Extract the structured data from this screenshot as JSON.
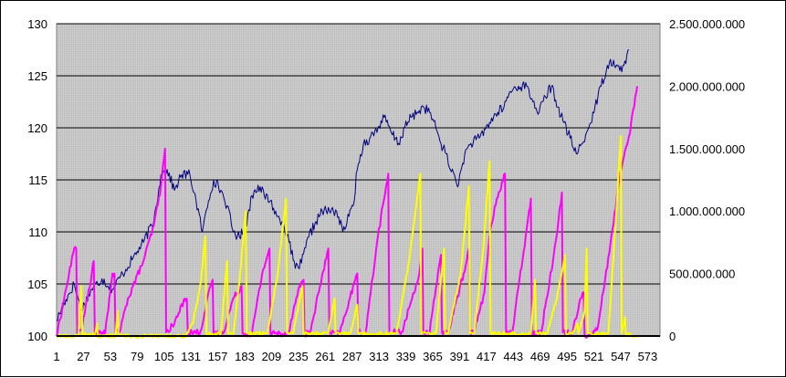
{
  "chart_data": {
    "type": "line",
    "title": "",
    "xlabel": "",
    "ylabel": "",
    "y_left": {
      "min": 100,
      "max": 130,
      "step": 5,
      "ticks": [
        "100",
        "105",
        "110",
        "115",
        "120",
        "125",
        "130"
      ]
    },
    "y_right": {
      "min": 0,
      "max": 2500000000,
      "step": 500000000,
      "ticks": [
        "0",
        "500.000.000",
        "1.000.000.000",
        "1.500.000.000",
        "2.000.000.000",
        "2.500.000.000"
      ]
    },
    "x_ticks": [
      "1",
      "27",
      "53",
      "79",
      "105",
      "131",
      "157",
      "183",
      "209",
      "235",
      "261",
      "287",
      "313",
      "339",
      "365",
      "391",
      "417",
      "443",
      "469",
      "495",
      "521",
      "547",
      "573"
    ],
    "x_range": [
      1,
      585
    ],
    "grid": true,
    "legend": "none",
    "background_color": "#c0c0c0",
    "series": [
      {
        "axis": "left",
        "color": "#000080",
        "knots": [
          [
            1,
            101.5
          ],
          [
            10,
            103.5
          ],
          [
            18,
            105
          ],
          [
            25,
            102.5
          ],
          [
            35,
            104.5
          ],
          [
            45,
            105.5
          ],
          [
            55,
            104.5
          ],
          [
            65,
            106
          ],
          [
            75,
            107.5
          ],
          [
            85,
            109
          ],
          [
            95,
            111
          ],
          [
            102,
            115.5
          ],
          [
            108,
            116
          ],
          [
            115,
            114
          ],
          [
            122,
            115.5
          ],
          [
            130,
            115.5
          ],
          [
            136,
            113
          ],
          [
            142,
            110
          ],
          [
            148,
            113
          ],
          [
            153,
            115
          ],
          [
            160,
            114
          ],
          [
            166,
            112.5
          ],
          [
            172,
            110
          ],
          [
            178,
            109.5
          ],
          [
            184,
            110.5
          ],
          [
            190,
            113.5
          ],
          [
            196,
            114.5
          ],
          [
            202,
            113.5
          ],
          [
            208,
            113
          ],
          [
            214,
            111.5
          ],
          [
            220,
            111
          ],
          [
            226,
            109
          ],
          [
            232,
            106.5
          ],
          [
            238,
            107
          ],
          [
            245,
            109.5
          ],
          [
            252,
            111
          ],
          [
            258,
            112
          ],
          [
            265,
            112
          ],
          [
            272,
            112
          ],
          [
            278,
            110
          ],
          [
            284,
            111.5
          ],
          [
            288,
            112.5
          ],
          [
            292,
            116
          ],
          [
            298,
            118.5
          ],
          [
            304,
            119
          ],
          [
            312,
            120
          ],
          [
            318,
            121
          ],
          [
            325,
            119.5
          ],
          [
            332,
            118.5
          ],
          [
            338,
            120
          ],
          [
            344,
            121
          ],
          [
            350,
            121.5
          ],
          [
            356,
            122
          ],
          [
            362,
            121.5
          ],
          [
            368,
            120
          ],
          [
            373,
            118.5
          ],
          [
            378,
            117.5
          ],
          [
            382,
            116
          ],
          [
            386,
            115.5
          ],
          [
            390,
            114.5
          ],
          [
            396,
            117.5
          ],
          [
            402,
            118.5
          ],
          [
            410,
            119
          ],
          [
            420,
            120.5
          ],
          [
            428,
            121.5
          ],
          [
            434,
            122
          ],
          [
            440,
            123.5
          ],
          [
            448,
            124
          ],
          [
            456,
            124
          ],
          [
            462,
            122.5
          ],
          [
            468,
            121.5
          ],
          [
            474,
            123
          ],
          [
            480,
            124
          ],
          [
            486,
            122
          ],
          [
            492,
            120.5
          ],
          [
            498,
            119
          ],
          [
            504,
            117.5
          ],
          [
            510,
            118.5
          ],
          [
            516,
            120
          ],
          [
            522,
            122
          ],
          [
            528,
            124
          ],
          [
            534,
            126
          ],
          [
            540,
            126.5
          ],
          [
            546,
            125.5
          ],
          [
            550,
            126
          ],
          [
            555,
            127.5
          ]
        ],
        "wobble": 0.5
      },
      {
        "axis": "right",
        "color": "#ff00ff",
        "knots": [
          [
            1,
            0
          ],
          [
            18,
            700000000
          ],
          [
            20,
            700000000
          ],
          [
            21,
            20000000
          ],
          [
            26,
            80000000
          ],
          [
            35,
            500000000
          ],
          [
            37,
            600000000
          ],
          [
            38,
            20000000
          ],
          [
            48,
            20000000
          ],
          [
            55,
            500000000
          ],
          [
            57,
            500000000
          ],
          [
            58,
            30000000
          ],
          [
            62,
            30000000
          ],
          [
            70,
            300000000
          ],
          [
            85,
            600000000
          ],
          [
            95,
            880000000
          ],
          [
            102,
            1200000000
          ],
          [
            106,
            1500000000
          ],
          [
            107,
            30000000
          ],
          [
            115,
            100000000
          ],
          [
            125,
            300000000
          ],
          [
            127,
            300000000
          ],
          [
            128,
            30000000
          ],
          [
            140,
            30000000
          ],
          [
            150,
            400000000
          ],
          [
            152,
            450000000
          ],
          [
            153,
            20000000
          ],
          [
            162,
            20000000
          ],
          [
            172,
            300000000
          ],
          [
            180,
            400000000
          ],
          [
            181,
            20000000
          ],
          [
            190,
            20000000
          ],
          [
            200,
            500000000
          ],
          [
            207,
            700000000
          ],
          [
            208,
            20000000
          ],
          [
            225,
            20000000
          ],
          [
            236,
            400000000
          ],
          [
            240,
            450000000
          ],
          [
            241,
            20000000
          ],
          [
            246,
            20000000
          ],
          [
            256,
            400000000
          ],
          [
            264,
            700000000
          ],
          [
            265,
            20000000
          ],
          [
            275,
            20000000
          ],
          [
            290,
            450000000
          ],
          [
            292,
            500000000
          ],
          [
            293,
            30000000
          ],
          [
            300,
            30000000
          ],
          [
            312,
            800000000
          ],
          [
            322,
            1300000000
          ],
          [
            323,
            30000000
          ],
          [
            335,
            30000000
          ],
          [
            345,
            300000000
          ],
          [
            352,
            500000000
          ],
          [
            355,
            700000000
          ],
          [
            356,
            20000000
          ],
          [
            362,
            20000000
          ],
          [
            370,
            500000000
          ],
          [
            373,
            650000000
          ],
          [
            374,
            30000000
          ],
          [
            380,
            30000000
          ],
          [
            395,
            500000000
          ],
          [
            400,
            700000000
          ],
          [
            401,
            30000000
          ],
          [
            405,
            30000000
          ],
          [
            415,
            350000000
          ],
          [
            420,
            800000000
          ],
          [
            427,
            1100000000
          ],
          [
            435,
            1300000000
          ],
          [
            436,
            30000000
          ],
          [
            442,
            30000000
          ],
          [
            455,
            800000000
          ],
          [
            460,
            1100000000
          ],
          [
            461,
            30000000
          ],
          [
            470,
            30000000
          ],
          [
            485,
            800000000
          ],
          [
            490,
            1150000000
          ],
          [
            491,
            30000000
          ],
          [
            500,
            30000000
          ],
          [
            508,
            300000000
          ],
          [
            511,
            350000000
          ],
          [
            512,
            10000000
          ],
          [
            520,
            10000000
          ],
          [
            525,
            80000000
          ],
          [
            530,
            350000000
          ],
          [
            540,
            900000000
          ],
          [
            546,
            1300000000
          ],
          [
            555,
            1600000000
          ],
          [
            563,
            2000000000
          ]
        ],
        "wobble": 25000000
      },
      {
        "axis": "right",
        "color": "#ffff00",
        "knots": [
          [
            1,
            0
          ],
          [
            22,
            0
          ],
          [
            25,
            400000000
          ],
          [
            26,
            10000000
          ],
          [
            38,
            10000000
          ],
          [
            40,
            100000000
          ],
          [
            41,
            0
          ],
          [
            58,
            0
          ],
          [
            60,
            200000000
          ],
          [
            61,
            0
          ],
          [
            126,
            0
          ],
          [
            133,
            100000000
          ],
          [
            140,
            400000000
          ],
          [
            145,
            800000000
          ],
          [
            146,
            20000000
          ],
          [
            160,
            20000000
          ],
          [
            166,
            600000000
          ],
          [
            167,
            20000000
          ],
          [
            172,
            20000000
          ],
          [
            178,
            450000000
          ],
          [
            184,
            1000000000
          ],
          [
            185,
            20000000
          ],
          [
            205,
            20000000
          ],
          [
            215,
            500000000
          ],
          [
            223,
            1100000000
          ],
          [
            224,
            20000000
          ],
          [
            230,
            20000000
          ],
          [
            239,
            400000000
          ],
          [
            240,
            20000000
          ],
          [
            264,
            20000000
          ],
          [
            270,
            300000000
          ],
          [
            271,
            20000000
          ],
          [
            285,
            20000000
          ],
          [
            292,
            250000000
          ],
          [
            293,
            20000000
          ],
          [
            325,
            20000000
          ],
          [
            330,
            20000000
          ],
          [
            342,
            600000000
          ],
          [
            353,
            1300000000
          ],
          [
            354,
            20000000
          ],
          [
            368,
            20000000
          ],
          [
            376,
            700000000
          ],
          [
            377,
            20000000
          ],
          [
            380,
            20000000
          ],
          [
            392,
            500000000
          ],
          [
            400,
            1200000000
          ],
          [
            401,
            20000000
          ],
          [
            405,
            20000000
          ],
          [
            414,
            700000000
          ],
          [
            420,
            1400000000
          ],
          [
            421,
            20000000
          ],
          [
            460,
            20000000
          ],
          [
            464,
            450000000
          ],
          [
            465,
            20000000
          ],
          [
            476,
            20000000
          ],
          [
            485,
            300000000
          ],
          [
            493,
            650000000
          ],
          [
            494,
            20000000
          ],
          [
            500,
            20000000
          ],
          [
            505,
            100000000
          ],
          [
            506,
            20000000
          ],
          [
            512,
            200000000
          ],
          [
            514,
            700000000
          ],
          [
            515,
            20000000
          ],
          [
            535,
            20000000
          ],
          [
            542,
            900000000
          ],
          [
            547,
            1600000000
          ],
          [
            548,
            20000000
          ],
          [
            551,
            150000000
          ],
          [
            552,
            10000000
          ],
          [
            563,
            0
          ]
        ],
        "wobble": 15000000
      }
    ]
  }
}
